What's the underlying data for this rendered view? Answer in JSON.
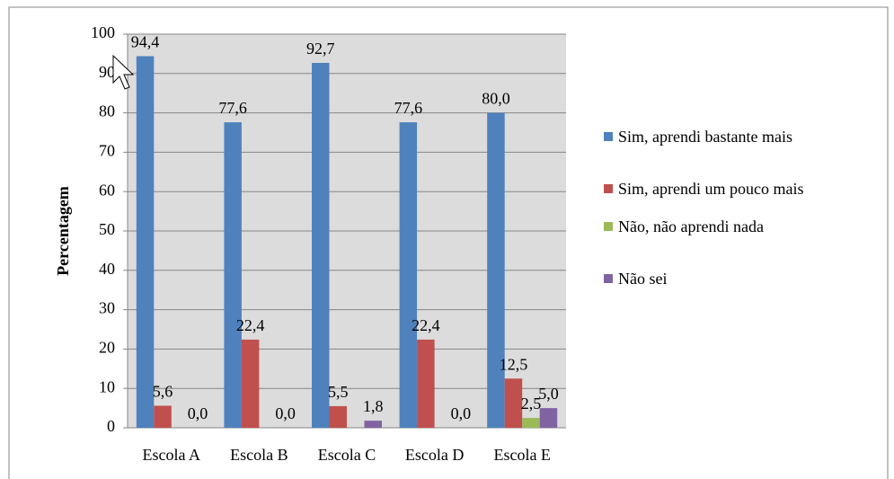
{
  "chart_data": {
    "type": "bar",
    "y_label": "Percentagem",
    "categories": [
      "Escola A",
      "Escola B",
      "Escola C",
      "Escola D",
      "Escola E"
    ],
    "series": [
      {
        "name": "Sim, aprendi bastante mais",
        "color": "#4f81bd",
        "values": [
          94.4,
          77.6,
          92.7,
          77.6,
          80.0
        ],
        "value_labels": [
          "94,4",
          "77,6",
          "92,7",
          "77,6",
          "80,0"
        ]
      },
      {
        "name": "Sim, aprendi um pouco mais",
        "color": "#c0504d",
        "values": [
          5.6,
          22.4,
          5.5,
          22.4,
          12.5
        ],
        "value_labels": [
          "5,6",
          "22,4",
          "5,5",
          "22,4",
          "12,5"
        ]
      },
      {
        "name": "Não, não aprendi nada",
        "color": "#9bbb59",
        "values": [
          0,
          0,
          0,
          0,
          2.5
        ],
        "value_labels": [
          null,
          null,
          null,
          null,
          "2,5"
        ]
      },
      {
        "name": "Não sei",
        "color": "#8064a2",
        "values": [
          0,
          0,
          1.8,
          0,
          5.0
        ],
        "value_labels": [
          "0,0",
          "0,0",
          "1,8",
          "0,0",
          "5,0"
        ]
      }
    ],
    "ylim": [
      0,
      100
    ],
    "yticks": [
      0,
      10,
      20,
      30,
      40,
      50,
      60,
      70,
      80,
      90,
      100
    ],
    "grid": true,
    "legend": "right"
  }
}
